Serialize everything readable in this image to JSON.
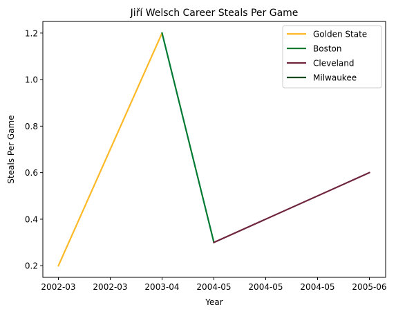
{
  "chart_data": {
    "type": "line",
    "title": "Jiří Welsch Career Steals Per Game",
    "xlabel": "Year",
    "ylabel": "Steals Per Game",
    "x_tick_labels": [
      "2002-03",
      "2002-03",
      "2003-04",
      "2004-05",
      "2004-05",
      "2004-05",
      "2005-06"
    ],
    "y_ticks": [
      0.2,
      0.4,
      0.6,
      0.8,
      1.0,
      1.2
    ],
    "y_tick_labels": [
      "0.2",
      "0.4",
      "0.6",
      "0.8",
      "1.0",
      "1.2"
    ],
    "ylim": [
      0.15,
      1.25
    ],
    "grid": false,
    "legend_position": "top-right",
    "series": [
      {
        "name": "Golden State",
        "color": "#FDB927",
        "points": [
          {
            "x": "2002-03",
            "y": 0.2
          },
          {
            "x": "2003-04",
            "y": 1.2
          }
        ]
      },
      {
        "name": "Boston",
        "color": "#007A33",
        "points": [
          {
            "x": "2003-04",
            "y": 1.2
          },
          {
            "x": "2004-05",
            "y": 0.3
          }
        ]
      },
      {
        "name": "Cleveland",
        "color": "#6F263D",
        "points": [
          {
            "x": "2004-05",
            "y": 0.3
          },
          {
            "x": "2005-06",
            "y": 0.6
          }
        ]
      },
      {
        "name": "Milwaukee",
        "color": "#00471B",
        "points": []
      }
    ]
  }
}
